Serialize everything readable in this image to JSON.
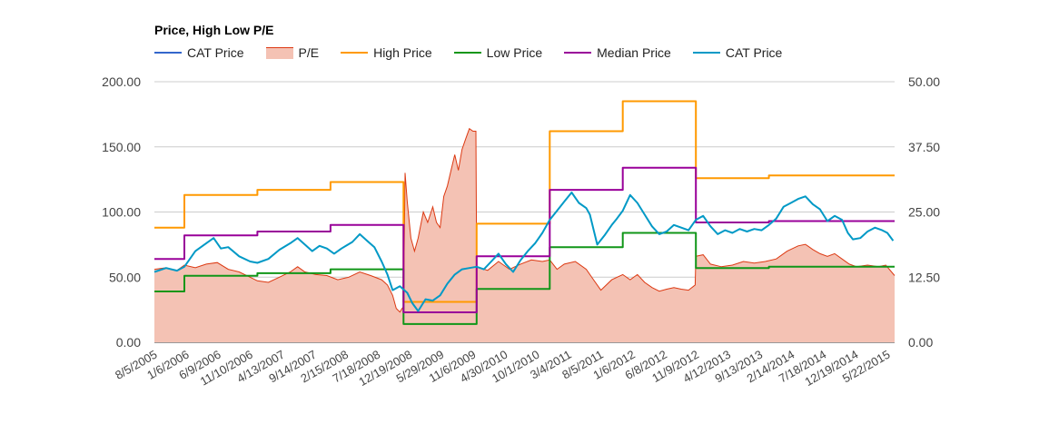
{
  "chart_data": {
    "type": "line",
    "title": "Price, High Low P/E",
    "legend": [
      {
        "name": "CAT Price",
        "color": "#3366cc",
        "kind": "line"
      },
      {
        "name": "P/E",
        "color": "#dc3912",
        "fill": "#f4c2b4",
        "kind": "area"
      },
      {
        "name": "High Price",
        "color": "#ff9900",
        "kind": "line"
      },
      {
        "name": "Low Price",
        "color": "#109618",
        "kind": "line"
      },
      {
        "name": "Median Price",
        "color": "#990099",
        "kind": "line"
      },
      {
        "name": "CAT Price",
        "color": "#0099c6",
        "kind": "line"
      }
    ],
    "x_range": [
      2005.59,
      2015.72
    ],
    "x_tick_labels": [
      "8/5/2005",
      "1/6/2006",
      "6/9/2006",
      "11/10/2006",
      "4/13/2007",
      "9/14/2007",
      "2/15/2008",
      "7/18/2008",
      "12/19/2008",
      "5/29/2009",
      "11/6/2009",
      "4/30/2010",
      "10/1/2010",
      "3/4/2011",
      "8/5/2011",
      "1/6/2012",
      "6/8/2012",
      "11/9/2012",
      "4/12/2013",
      "9/13/2013",
      "2/14/2014",
      "7/18/2014",
      "12/19/2014",
      "5/22/2015"
    ],
    "left_axis": {
      "min": 0,
      "max": 200,
      "ticks": [
        "0.00",
        "50.00",
        "100.00",
        "150.00",
        "200.00"
      ]
    },
    "right_axis": {
      "min": 0,
      "max": 50,
      "ticks": [
        "0.00",
        "12.50",
        "25.00",
        "37.50",
        "50.00"
      ]
    },
    "series": [
      {
        "name": "High Price",
        "axis": "left",
        "type": "step",
        "points": [
          [
            2005.59,
            88
          ],
          [
            2006.0,
            88
          ],
          [
            2006.0,
            113
          ],
          [
            2007.0,
            113
          ],
          [
            2007.0,
            117
          ],
          [
            2008.0,
            117
          ],
          [
            2008.0,
            123
          ],
          [
            2009.0,
            123
          ],
          [
            2009.0,
            31
          ],
          [
            2010.0,
            31
          ],
          [
            2010.0,
            91
          ],
          [
            2011.0,
            91
          ],
          [
            2011.0,
            162
          ],
          [
            2012.0,
            162
          ],
          [
            2012.0,
            185
          ],
          [
            2013.0,
            185
          ],
          [
            2013.0,
            126
          ],
          [
            2014.0,
            126
          ],
          [
            2014.0,
            128
          ],
          [
            2015.72,
            128
          ]
        ]
      },
      {
        "name": "Low Price",
        "axis": "left",
        "type": "step",
        "points": [
          [
            2005.59,
            39
          ],
          [
            2006.0,
            39
          ],
          [
            2006.0,
            51
          ],
          [
            2007.0,
            51
          ],
          [
            2007.0,
            53
          ],
          [
            2008.0,
            53
          ],
          [
            2008.0,
            56
          ],
          [
            2009.0,
            56
          ],
          [
            2009.0,
            14
          ],
          [
            2010.0,
            14
          ],
          [
            2010.0,
            41
          ],
          [
            2011.0,
            41
          ],
          [
            2011.0,
            73
          ],
          [
            2012.0,
            73
          ],
          [
            2012.0,
            84
          ],
          [
            2013.0,
            84
          ],
          [
            2013.0,
            57
          ],
          [
            2014.0,
            57
          ],
          [
            2014.0,
            58
          ],
          [
            2015.72,
            58
          ]
        ]
      },
      {
        "name": "Median Price",
        "axis": "left",
        "type": "step",
        "points": [
          [
            2005.59,
            64
          ],
          [
            2006.0,
            64
          ],
          [
            2006.0,
            82
          ],
          [
            2007.0,
            82
          ],
          [
            2007.0,
            85
          ],
          [
            2008.0,
            85
          ],
          [
            2008.0,
            90
          ],
          [
            2009.0,
            90
          ],
          [
            2009.0,
            23
          ],
          [
            2010.0,
            23
          ],
          [
            2010.0,
            66
          ],
          [
            2011.0,
            66
          ],
          [
            2011.0,
            117
          ],
          [
            2012.0,
            117
          ],
          [
            2012.0,
            134
          ],
          [
            2013.0,
            134
          ],
          [
            2013.0,
            92
          ],
          [
            2014.0,
            92
          ],
          [
            2014.0,
            93
          ],
          [
            2015.72,
            93
          ]
        ]
      },
      {
        "name": "CAT Price",
        "axis": "left",
        "type": "line",
        "points": [
          [
            2005.59,
            54
          ],
          [
            2005.75,
            57
          ],
          [
            2005.9,
            55
          ],
          [
            2006.0,
            58
          ],
          [
            2006.15,
            70
          ],
          [
            2006.3,
            76
          ],
          [
            2006.4,
            80
          ],
          [
            2006.5,
            72
          ],
          [
            2006.6,
            73
          ],
          [
            2006.75,
            66
          ],
          [
            2006.9,
            62
          ],
          [
            2007.0,
            61
          ],
          [
            2007.15,
            64
          ],
          [
            2007.3,
            71
          ],
          [
            2007.45,
            76
          ],
          [
            2007.55,
            80
          ],
          [
            2007.65,
            75
          ],
          [
            2007.75,
            70
          ],
          [
            2007.85,
            74
          ],
          [
            2007.95,
            72
          ],
          [
            2008.05,
            68
          ],
          [
            2008.15,
            72
          ],
          [
            2008.3,
            77
          ],
          [
            2008.4,
            83
          ],
          [
            2008.5,
            78
          ],
          [
            2008.6,
            73
          ],
          [
            2008.7,
            62
          ],
          [
            2008.78,
            52
          ],
          [
            2008.85,
            40
          ],
          [
            2008.95,
            43
          ],
          [
            2009.05,
            38
          ],
          [
            2009.12,
            30
          ],
          [
            2009.2,
            24
          ],
          [
            2009.3,
            33
          ],
          [
            2009.4,
            32
          ],
          [
            2009.5,
            36
          ],
          [
            2009.6,
            45
          ],
          [
            2009.7,
            52
          ],
          [
            2009.8,
            56
          ],
          [
            2009.9,
            57
          ],
          [
            2010.0,
            58
          ],
          [
            2010.1,
            56
          ],
          [
            2010.2,
            62
          ],
          [
            2010.3,
            68
          ],
          [
            2010.4,
            60
          ],
          [
            2010.5,
            54
          ],
          [
            2010.6,
            63
          ],
          [
            2010.7,
            70
          ],
          [
            2010.8,
            76
          ],
          [
            2010.9,
            84
          ],
          [
            2011.0,
            94
          ],
          [
            2011.1,
            101
          ],
          [
            2011.2,
            108
          ],
          [
            2011.3,
            115
          ],
          [
            2011.4,
            107
          ],
          [
            2011.5,
            103
          ],
          [
            2011.55,
            98
          ],
          [
            2011.65,
            75
          ],
          [
            2011.75,
            82
          ],
          [
            2011.85,
            90
          ],
          [
            2011.92,
            95
          ],
          [
            2012.0,
            101
          ],
          [
            2012.1,
            113
          ],
          [
            2012.2,
            107
          ],
          [
            2012.3,
            98
          ],
          [
            2012.4,
            89
          ],
          [
            2012.5,
            83
          ],
          [
            2012.6,
            85
          ],
          [
            2012.7,
            90
          ],
          [
            2012.8,
            88
          ],
          [
            2012.9,
            86
          ],
          [
            2013.0,
            94
          ],
          [
            2013.1,
            97
          ],
          [
            2013.2,
            89
          ],
          [
            2013.3,
            83
          ],
          [
            2013.4,
            86
          ],
          [
            2013.5,
            84
          ],
          [
            2013.6,
            87
          ],
          [
            2013.7,
            85
          ],
          [
            2013.8,
            87
          ],
          [
            2013.9,
            86
          ],
          [
            2014.0,
            90
          ],
          [
            2014.1,
            95
          ],
          [
            2014.2,
            104
          ],
          [
            2014.3,
            107
          ],
          [
            2014.4,
            110
          ],
          [
            2014.5,
            112
          ],
          [
            2014.6,
            106
          ],
          [
            2014.7,
            102
          ],
          [
            2014.8,
            93
          ],
          [
            2014.9,
            97
          ],
          [
            2015.0,
            94
          ],
          [
            2015.08,
            84
          ],
          [
            2015.15,
            79
          ],
          [
            2015.25,
            80
          ],
          [
            2015.35,
            85
          ],
          [
            2015.45,
            88
          ],
          [
            2015.55,
            86
          ],
          [
            2015.62,
            84
          ],
          [
            2015.7,
            78
          ]
        ]
      },
      {
        "name": "P/E",
        "axis": "right",
        "type": "area",
        "points": [
          [
            2005.59,
            14.0
          ],
          [
            2005.75,
            14.3
          ],
          [
            2005.9,
            13.8
          ],
          [
            2006.0,
            14.8
          ],
          [
            2006.15,
            14.3
          ],
          [
            2006.3,
            15.0
          ],
          [
            2006.45,
            15.3
          ],
          [
            2006.6,
            14.0
          ],
          [
            2006.75,
            13.5
          ],
          [
            2006.9,
            12.5
          ],
          [
            2007.0,
            11.8
          ],
          [
            2007.15,
            11.5
          ],
          [
            2007.3,
            12.5
          ],
          [
            2007.45,
            13.5
          ],
          [
            2007.55,
            14.5
          ],
          [
            2007.65,
            13.5
          ],
          [
            2007.8,
            13.0
          ],
          [
            2007.95,
            12.8
          ],
          [
            2008.1,
            12.0
          ],
          [
            2008.25,
            12.5
          ],
          [
            2008.4,
            13.5
          ],
          [
            2008.55,
            12.8
          ],
          [
            2008.7,
            12.0
          ],
          [
            2008.78,
            11.0
          ],
          [
            2008.85,
            9.0
          ],
          [
            2008.9,
            6.5
          ],
          [
            2008.95,
            5.8
          ],
          [
            2008.98,
            6.5
          ],
          [
            2009.0,
            6.8
          ],
          [
            2009.02,
            32.5
          ],
          [
            2009.05,
            27.0
          ],
          [
            2009.1,
            20.0
          ],
          [
            2009.15,
            17.5
          ],
          [
            2009.2,
            20.0
          ],
          [
            2009.27,
            25.0
          ],
          [
            2009.33,
            23.0
          ],
          [
            2009.4,
            26.0
          ],
          [
            2009.45,
            23.0
          ],
          [
            2009.5,
            22.0
          ],
          [
            2009.55,
            28.0
          ],
          [
            2009.6,
            30.0
          ],
          [
            2009.65,
            33.0
          ],
          [
            2009.7,
            36.0
          ],
          [
            2009.75,
            33.0
          ],
          [
            2009.8,
            37.0
          ],
          [
            2009.85,
            39.0
          ],
          [
            2009.9,
            41.0
          ],
          [
            2009.95,
            40.5
          ],
          [
            2009.99,
            40.5
          ],
          [
            2010.0,
            14.5
          ],
          [
            2010.15,
            13.8
          ],
          [
            2010.3,
            15.5
          ],
          [
            2010.45,
            14.0
          ],
          [
            2010.6,
            15.0
          ],
          [
            2010.75,
            15.8
          ],
          [
            2010.9,
            15.5
          ],
          [
            2011.0,
            15.8
          ],
          [
            2011.1,
            14.0
          ],
          [
            2011.2,
            15.0
          ],
          [
            2011.35,
            15.5
          ],
          [
            2011.5,
            14.0
          ],
          [
            2011.6,
            12.0
          ],
          [
            2011.7,
            10.0
          ],
          [
            2011.85,
            12.0
          ],
          [
            2012.0,
            13.0
          ],
          [
            2012.1,
            12.0
          ],
          [
            2012.2,
            13.0
          ],
          [
            2012.3,
            11.5
          ],
          [
            2012.4,
            10.5
          ],
          [
            2012.5,
            9.8
          ],
          [
            2012.6,
            10.2
          ],
          [
            2012.7,
            10.5
          ],
          [
            2012.8,
            10.2
          ],
          [
            2012.9,
            10.0
          ],
          [
            2012.99,
            11.0
          ],
          [
            2013.0,
            16.5
          ],
          [
            2013.1,
            16.8
          ],
          [
            2013.2,
            15.0
          ],
          [
            2013.35,
            14.5
          ],
          [
            2013.5,
            14.8
          ],
          [
            2013.65,
            15.5
          ],
          [
            2013.8,
            15.2
          ],
          [
            2013.95,
            15.5
          ],
          [
            2014.1,
            16.0
          ],
          [
            2014.25,
            17.5
          ],
          [
            2014.4,
            18.5
          ],
          [
            2014.5,
            18.8
          ],
          [
            2014.6,
            17.8
          ],
          [
            2014.7,
            17.0
          ],
          [
            2014.8,
            16.5
          ],
          [
            2014.9,
            17.0
          ],
          [
            2015.0,
            16.0
          ],
          [
            2015.1,
            15.0
          ],
          [
            2015.2,
            14.5
          ],
          [
            2015.35,
            14.8
          ],
          [
            2015.5,
            14.5
          ],
          [
            2015.6,
            14.8
          ],
          [
            2015.72,
            12.8
          ]
        ]
      }
    ]
  }
}
